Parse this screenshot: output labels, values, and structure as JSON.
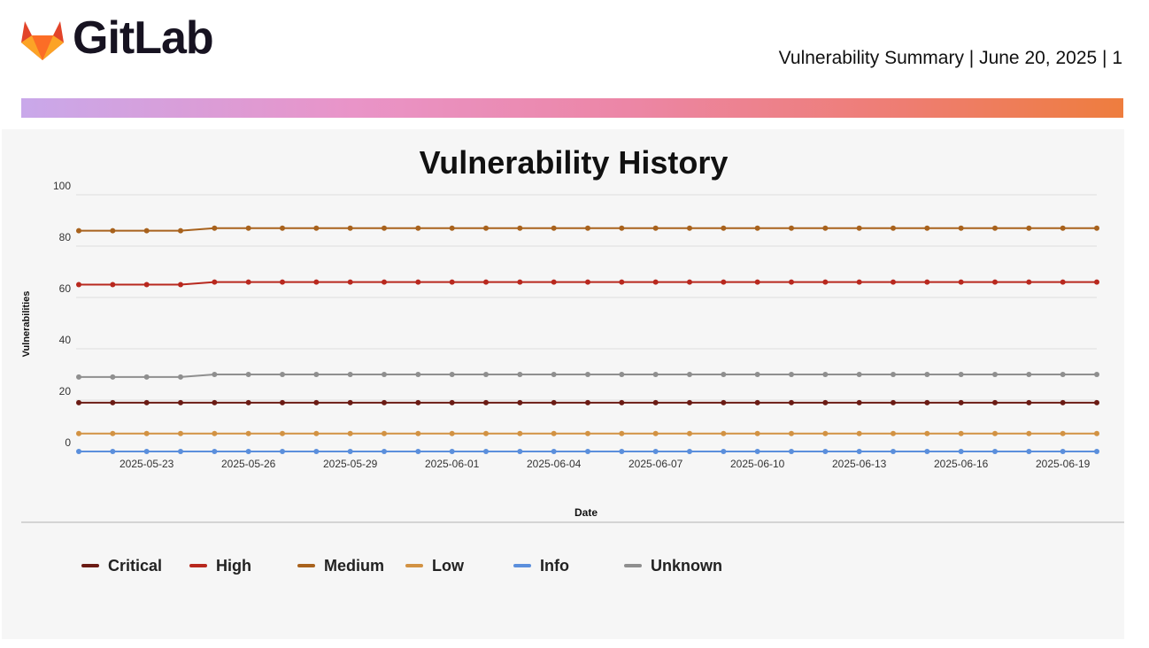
{
  "header": {
    "brand": "GitLab",
    "report_title": "Vulnerability Summary | June 20, 2025 | 1"
  },
  "icons": {
    "logo": "gitlab-tanuki-icon"
  },
  "colors": {
    "critical": "#6b1b14",
    "high": "#b8281e",
    "medium": "#a8621d",
    "low": "#d29243",
    "info": "#5b8fdc",
    "unknown": "#8f8f8f",
    "grid": "#dedede"
  },
  "chart_data": {
    "type": "line",
    "title": "Vulnerability History",
    "xlabel": "Date",
    "ylabel": "Vulnerabilities",
    "ylim": [
      0,
      100
    ],
    "yticks": [
      0,
      20,
      40,
      60,
      80,
      100
    ],
    "grid": true,
    "legend_position": "bottom",
    "x": [
      "2025-05-21",
      "2025-05-22",
      "2025-05-23",
      "2025-05-24",
      "2025-05-25",
      "2025-05-26",
      "2025-05-27",
      "2025-05-28",
      "2025-05-29",
      "2025-05-30",
      "2025-05-31",
      "2025-06-01",
      "2025-06-02",
      "2025-06-03",
      "2025-06-04",
      "2025-06-05",
      "2025-06-06",
      "2025-06-07",
      "2025-06-08",
      "2025-06-09",
      "2025-06-10",
      "2025-06-11",
      "2025-06-12",
      "2025-06-13",
      "2025-06-14",
      "2025-06-15",
      "2025-06-16",
      "2025-06-17",
      "2025-06-18",
      "2025-06-19",
      "2025-06-20"
    ],
    "xtick_labels": [
      "2025-05-23",
      "2025-05-26",
      "2025-05-29",
      "2025-06-01",
      "2025-06-04",
      "2025-06-07",
      "2025-06-10",
      "2025-06-13",
      "2025-06-16",
      "2025-06-19"
    ],
    "series": [
      {
        "name": "Critical",
        "color_key": "critical",
        "values": [
          19,
          19,
          19,
          19,
          19,
          19,
          19,
          19,
          19,
          19,
          19,
          19,
          19,
          19,
          19,
          19,
          19,
          19,
          19,
          19,
          19,
          19,
          19,
          19,
          19,
          19,
          19,
          19,
          19,
          19,
          19
        ]
      },
      {
        "name": "High",
        "color_key": "high",
        "values": [
          65,
          65,
          65,
          65,
          66,
          66,
          66,
          66,
          66,
          66,
          66,
          66,
          66,
          66,
          66,
          66,
          66,
          66,
          66,
          66,
          66,
          66,
          66,
          66,
          66,
          66,
          66,
          66,
          66,
          66,
          66
        ]
      },
      {
        "name": "Medium",
        "color_key": "medium",
        "values": [
          86,
          86,
          86,
          86,
          87,
          87,
          87,
          87,
          87,
          87,
          87,
          87,
          87,
          87,
          87,
          87,
          87,
          87,
          87,
          87,
          87,
          87,
          87,
          87,
          87,
          87,
          87,
          87,
          87,
          87,
          87
        ]
      },
      {
        "name": "Low",
        "color_key": "low",
        "values": [
          7,
          7,
          7,
          7,
          7,
          7,
          7,
          7,
          7,
          7,
          7,
          7,
          7,
          7,
          7,
          7,
          7,
          7,
          7,
          7,
          7,
          7,
          7,
          7,
          7,
          7,
          7,
          7,
          7,
          7,
          7
        ]
      },
      {
        "name": "Info",
        "color_key": "info",
        "values": [
          0,
          0,
          0,
          0,
          0,
          0,
          0,
          0,
          0,
          0,
          0,
          0,
          0,
          0,
          0,
          0,
          0,
          0,
          0,
          0,
          0,
          0,
          0,
          0,
          0,
          0,
          0,
          0,
          0,
          0,
          0
        ]
      },
      {
        "name": "Unknown",
        "color_key": "unknown",
        "values": [
          29,
          29,
          29,
          29,
          30,
          30,
          30,
          30,
          30,
          30,
          30,
          30,
          30,
          30,
          30,
          30,
          30,
          30,
          30,
          30,
          30,
          30,
          30,
          30,
          30,
          30,
          30,
          30,
          30,
          30,
          30
        ]
      }
    ]
  }
}
